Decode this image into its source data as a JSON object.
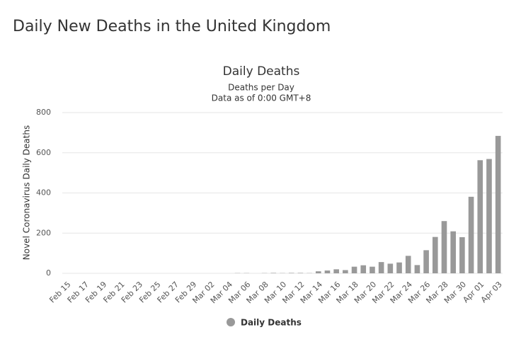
{
  "page_title": "Daily New Deaths in the United Kingdom",
  "chart_data": {
    "type": "bar",
    "title": "Daily Deaths",
    "subtitle": [
      "Deaths per Day",
      "Data as of 0:00 GMT+8"
    ],
    "y_label": "Novel Coronavirus Daily Deaths",
    "categories": [
      "Feb 15",
      null,
      "Feb 17",
      null,
      "Feb 19",
      null,
      "Feb 21",
      null,
      "Feb 23",
      null,
      "Feb 25",
      null,
      "Feb 27",
      null,
      "Feb 29",
      null,
      "Mar 02",
      null,
      "Mar 04",
      null,
      "Mar 06",
      null,
      "Mar 08",
      null,
      "Mar 10",
      null,
      "Mar 12",
      null,
      "Mar 14",
      null,
      "Mar 16",
      null,
      "Mar 18",
      null,
      "Mar 20",
      null,
      "Mar 22",
      null,
      "Mar 24",
      null,
      "Mar 26",
      null,
      "Mar 28",
      null,
      "Mar 30",
      null,
      "Apr 01",
      null,
      "Apr 03"
    ],
    "series": [
      {
        "name": "Daily Deaths",
        "color": "#999999",
        "values": [
          0,
          0,
          0,
          0,
          0,
          0,
          0,
          0,
          0,
          0,
          0,
          0,
          0,
          0,
          0,
          0,
          0,
          0,
          0,
          1,
          1,
          0,
          1,
          2,
          1,
          2,
          2,
          1,
          10,
          14,
          20,
          16,
          33,
          40,
          33,
          56,
          48,
          54,
          87,
          41,
          115,
          181,
          260,
          209,
          180,
          381,
          563,
          569,
          684
        ]
      }
    ],
    "ylim": [
      0,
      800
    ],
    "yticks": [
      0,
      200,
      400,
      600,
      800
    ],
    "grid": true,
    "legend": "bottom"
  }
}
